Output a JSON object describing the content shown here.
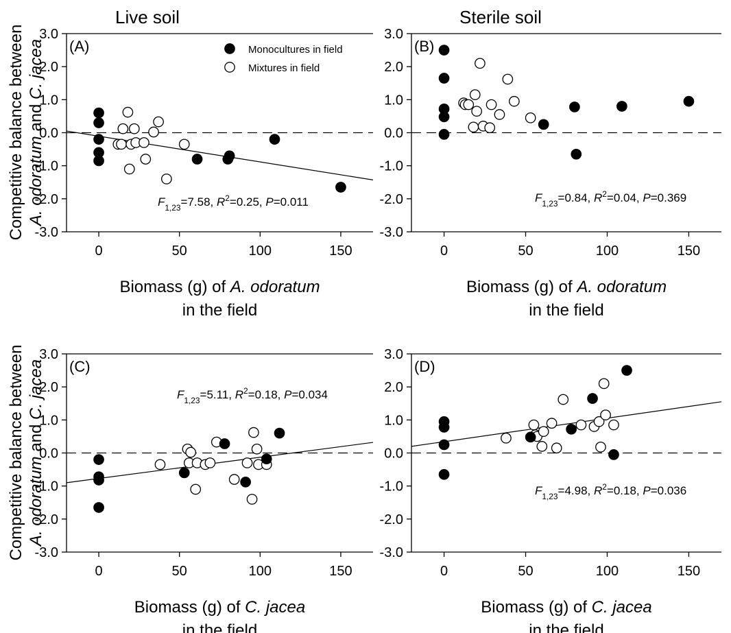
{
  "figure": {
    "ylabel_line1": "Competitive balance between",
    "ylabel_line2_parts": [
      {
        "text": "A. odoratum",
        "italic": true
      },
      {
        "text": " and ",
        "italic": false
      },
      {
        "text": "C. jacea",
        "italic": true
      }
    ]
  },
  "legend": {
    "mono": "Monocultures in field",
    "mix": "Mixtures in field"
  },
  "colors": {
    "mono": "#000000",
    "mix": "#ffffff",
    "line": "#000000"
  },
  "chart_data": [
    {
      "type": "scatter",
      "title": "Live soil",
      "panel_label": "(A)",
      "xlabel_parts": [
        {
          "text": "Biomass (g) of ",
          "italic": false
        },
        {
          "text": "A. odoratum",
          "italic": true
        }
      ],
      "xlabel_line2": "in the field",
      "xlim": [
        -20,
        170
      ],
      "ylim": [
        -3,
        3
      ],
      "xticks": [
        "0",
        "50",
        "100",
        "150"
      ],
      "yticks": [
        "-3.0",
        "-2.0",
        "-1.0",
        "0.0",
        "1.0",
        "2.0",
        "3.0"
      ],
      "reference_line_y": 0,
      "regression": {
        "x": [
          -20,
          170
        ],
        "y": [
          0.05,
          -1.43
        ]
      },
      "stat_parts": [
        {
          "text": "F",
          "italic": true
        },
        {
          "text": "1,23",
          "sub": true
        },
        {
          "text": "=7.58, "
        },
        {
          "text": "R",
          "italic": true
        },
        {
          "text": "2",
          "sup": true
        },
        {
          "text": "=0.25, "
        },
        {
          "text": "P",
          "italic": true
        },
        {
          "text": "=0.011"
        }
      ],
      "series": [
        {
          "name": "Monocultures in field",
          "filled": true,
          "x": [
            0,
            0,
            0,
            0,
            0,
            61,
            80,
            81,
            109,
            150
          ],
          "y": [
            0.6,
            0.3,
            -0.2,
            -0.6,
            -0.85,
            -0.8,
            -0.8,
            -0.7,
            -0.2,
            -1.65
          ]
        },
        {
          "name": "Mixtures in field",
          "filled": false,
          "x": [
            12,
            14,
            15,
            18,
            19,
            20,
            22,
            23,
            28,
            29,
            34,
            37,
            42,
            53
          ],
          "y": [
            -0.35,
            -0.35,
            0.12,
            0.62,
            -1.1,
            -0.35,
            0.12,
            -0.3,
            -0.3,
            -0.8,
            0.02,
            0.33,
            -1.4,
            -0.35
          ]
        }
      ]
    },
    {
      "type": "scatter",
      "title": "Sterile soil",
      "panel_label": "(B)",
      "xlabel_parts": [
        {
          "text": "Biomass (g) of ",
          "italic": false
        },
        {
          "text": "A. odoratum",
          "italic": true
        }
      ],
      "xlabel_line2": "in the field",
      "xlim": [
        -20,
        170
      ],
      "ylim": [
        -3,
        3
      ],
      "xticks": [
        "0",
        "50",
        "100",
        "150"
      ],
      "yticks": [
        "-3.0",
        "-2.0",
        "-1.0",
        "0.0",
        "1.0",
        "2.0",
        "3.0"
      ],
      "reference_line_y": 0,
      "regression": null,
      "stat_parts": [
        {
          "text": "F",
          "italic": true
        },
        {
          "text": "1,23",
          "sub": true
        },
        {
          "text": "=0.84, "
        },
        {
          "text": "R",
          "italic": true
        },
        {
          "text": "2",
          "sup": true
        },
        {
          "text": "=0.04, "
        },
        {
          "text": "P",
          "italic": true
        },
        {
          "text": "=0.369"
        }
      ],
      "series": [
        {
          "name": "Monocultures in field",
          "filled": true,
          "x": [
            0,
            0,
            0,
            0,
            0,
            61,
            80,
            81,
            109,
            150
          ],
          "y": [
            2.5,
            1.65,
            0.72,
            0.48,
            -0.05,
            0.25,
            0.78,
            -0.65,
            0.8,
            0.95
          ]
        },
        {
          "name": "Mixtures in field",
          "filled": false,
          "x": [
            12,
            13,
            15,
            18,
            19,
            20,
            22,
            24,
            28,
            29,
            34,
            39,
            43,
            53
          ],
          "y": [
            0.9,
            0.85,
            0.85,
            0.17,
            1.15,
            0.65,
            2.1,
            0.2,
            0.15,
            0.85,
            0.55,
            1.62,
            0.95,
            0.45
          ]
        }
      ]
    },
    {
      "type": "scatter",
      "title": "",
      "panel_label": "(C)",
      "xlabel_parts": [
        {
          "text": "Biomass (g) of ",
          "italic": false
        },
        {
          "text": "C. jacea",
          "italic": true
        }
      ],
      "xlabel_line2": "in the field",
      "xlim": [
        -20,
        170
      ],
      "ylim": [
        -3,
        3
      ],
      "xticks": [
        "0",
        "50",
        "100",
        "150"
      ],
      "yticks": [
        "-3.0",
        "-2.0",
        "-1.0",
        "0.0",
        "1.0",
        "2.0",
        "3.0"
      ],
      "reference_line_y": 0,
      "regression": {
        "x": [
          -20,
          170
        ],
        "y": [
          -0.9,
          0.32
        ]
      },
      "stat_parts": [
        {
          "text": "F",
          "italic": true
        },
        {
          "text": "1,23",
          "sub": true
        },
        {
          "text": "=5.11, "
        },
        {
          "text": "R",
          "italic": true
        },
        {
          "text": "2",
          "sup": true
        },
        {
          "text": "=0.18, "
        },
        {
          "text": "P",
          "italic": true
        },
        {
          "text": "=0.034"
        }
      ],
      "series": [
        {
          "name": "Monocultures in field",
          "filled": true,
          "x": [
            0,
            0,
            0,
            0,
            53,
            78,
            91,
            104,
            112
          ],
          "y": [
            -0.2,
            -0.72,
            -0.82,
            -1.65,
            -0.6,
            0.28,
            -0.88,
            -0.18,
            0.6
          ]
        },
        {
          "name": "Mixtures in field",
          "filled": false,
          "x": [
            38,
            55,
            56,
            57,
            60,
            61,
            66,
            69,
            73,
            84,
            92,
            95,
            96,
            98,
            99,
            104
          ],
          "y": [
            -0.35,
            0.12,
            -0.3,
            0.02,
            -1.1,
            -0.3,
            -0.35,
            -0.3,
            0.33,
            -0.8,
            -0.3,
            -1.4,
            0.62,
            0.12,
            -0.35,
            -0.35
          ]
        }
      ]
    },
    {
      "type": "scatter",
      "title": "",
      "panel_label": "(D)",
      "xlabel_parts": [
        {
          "text": "Biomass (g) of ",
          "italic": false
        },
        {
          "text": "C. jacea",
          "italic": true
        }
      ],
      "xlabel_line2": "in the field",
      "xlim": [
        -20,
        170
      ],
      "ylim": [
        -3,
        3
      ],
      "xticks": [
        "0",
        "50",
        "100",
        "150"
      ],
      "yticks": [
        "-3.0",
        "-2.0",
        "-1.0",
        "0.0",
        "1.0",
        "2.0",
        "3.0"
      ],
      "reference_line_y": 0,
      "regression": {
        "x": [
          -20,
          170
        ],
        "y": [
          0.2,
          1.55
        ]
      },
      "stat_parts": [
        {
          "text": "F",
          "italic": true
        },
        {
          "text": "1,23",
          "sub": true
        },
        {
          "text": "=4.98, "
        },
        {
          "text": "R",
          "italic": true
        },
        {
          "text": "2",
          "sup": true
        },
        {
          "text": "=0.18, "
        },
        {
          "text": "P",
          "italic": true
        },
        {
          "text": "=0.036"
        }
      ],
      "series": [
        {
          "name": "Monocultures in field",
          "filled": true,
          "x": [
            0,
            0,
            0,
            0,
            53,
            78,
            91,
            104,
            112
          ],
          "y": [
            0.95,
            0.78,
            0.25,
            -0.65,
            0.48,
            0.72,
            1.65,
            -0.05,
            2.5
          ]
        },
        {
          "name": "Mixtures in field",
          "filled": false,
          "x": [
            38,
            55,
            56,
            57,
            60,
            61,
            66,
            69,
            73,
            84,
            92,
            95,
            96,
            98,
            99,
            104
          ],
          "y": [
            0.45,
            0.85,
            0.55,
            0.5,
            0.2,
            0.65,
            0.9,
            0.15,
            1.62,
            0.85,
            0.8,
            0.95,
            0.18,
            2.1,
            1.15,
            0.85
          ]
        }
      ]
    }
  ]
}
